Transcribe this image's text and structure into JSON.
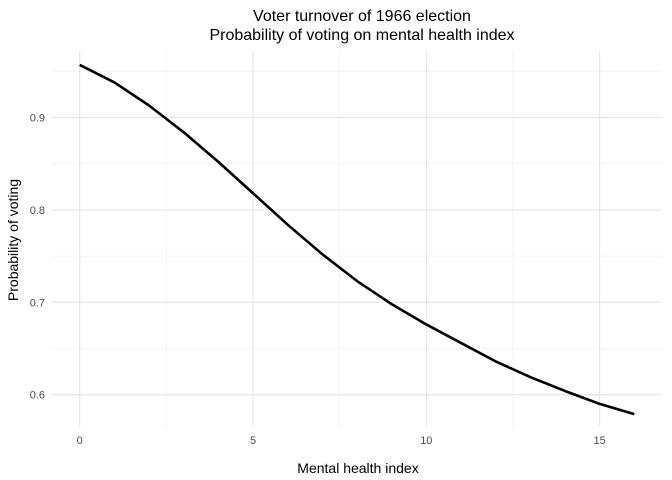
{
  "chart_data": {
    "type": "line",
    "title": "Voter turnover of 1966 election",
    "subtitle": "Probability of voting on mental health index",
    "xlabel": "Mental health index",
    "ylabel": "Probability of voting",
    "xlim": [
      -0.8,
      16.8
    ],
    "ylim": [
      0.565,
      0.972
    ],
    "x_ticks": [
      0,
      5,
      10,
      15
    ],
    "y_ticks": [
      0.6,
      0.7,
      0.8,
      0.9
    ],
    "x_tick_labels": [
      "0",
      "5",
      "10",
      "15"
    ],
    "y_tick_labels": [
      "0.6",
      "0.7",
      "0.8",
      "0.9"
    ],
    "grid": true,
    "legend": "none",
    "series": [
      {
        "color": "#000000",
        "x": [
          0,
          1,
          2,
          3,
          4,
          5,
          6,
          7,
          8,
          9,
          10,
          11,
          12,
          13,
          14,
          15,
          16
        ],
        "y": [
          0.957,
          0.938,
          0.913,
          0.884,
          0.852,
          0.818,
          0.784,
          0.752,
          0.723,
          0.698,
          0.676,
          0.656,
          0.636,
          0.619,
          0.604,
          0.59,
          0.579
        ]
      }
    ]
  }
}
